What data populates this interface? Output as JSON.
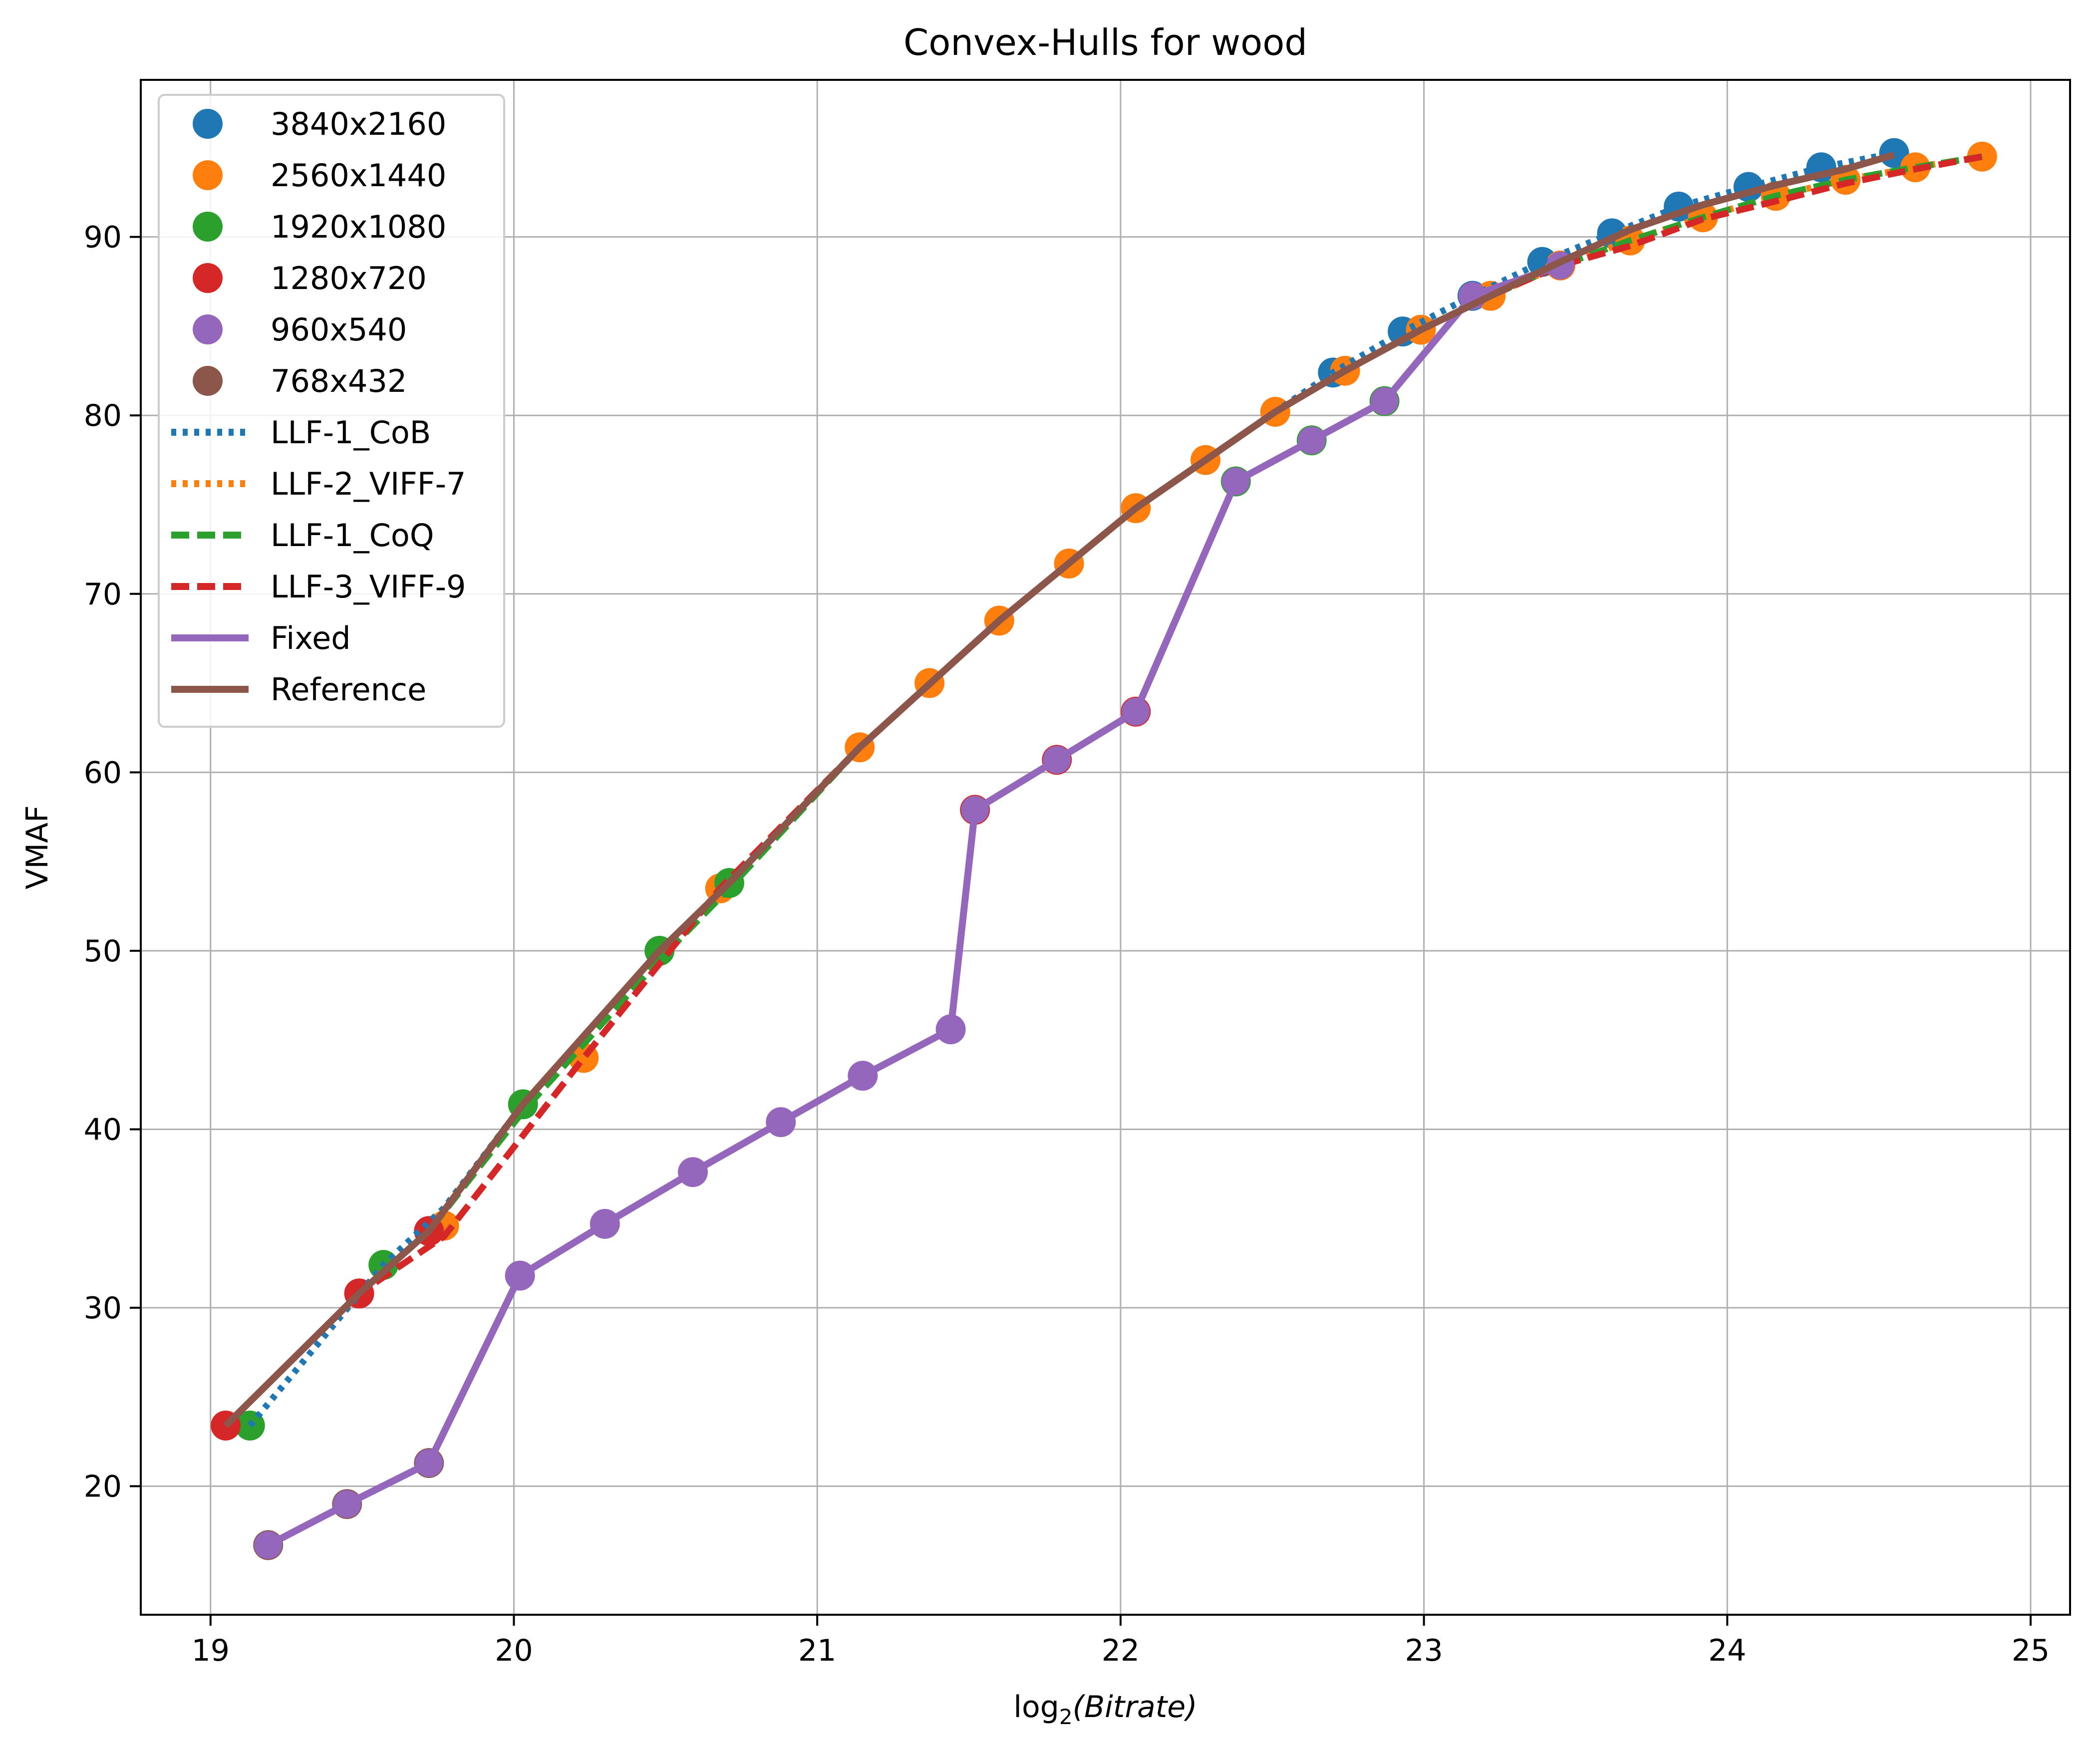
{
  "chart_data": {
    "type": "scatter",
    "title": "Convex-Hulls for wood",
    "xlabel_prefix": "log",
    "xlabel_sub": "2",
    "xlabel_arg": "(Bitrate)",
    "ylabel": "VMAF",
    "xlim": [
      18.77,
      25.13
    ],
    "ylim": [
      12.8,
      98.8
    ],
    "xticks": [
      19,
      20,
      21,
      22,
      23,
      24,
      25
    ],
    "yticks": [
      20,
      30,
      40,
      50,
      60,
      70,
      80,
      90
    ],
    "grid": true,
    "legend_position": "upper left",
    "scatter_series": [
      {
        "name": "3840x2160",
        "color": "#1f77b4",
        "x": [
          22.7,
          22.93,
          23.16,
          23.39,
          23.62,
          23.84,
          24.07,
          24.31,
          24.55
        ],
        "y": [
          82.4,
          84.7,
          86.7,
          88.6,
          90.2,
          91.7,
          92.8,
          93.9,
          94.7
        ]
      },
      {
        "name": "2560x1440",
        "color": "#ff7f0e",
        "x": [
          19.77,
          20.23,
          20.68,
          21.14,
          21.37,
          21.6,
          21.83,
          22.05,
          22.28,
          22.51,
          22.74,
          22.99,
          23.22,
          23.45,
          23.68,
          23.92,
          24.16,
          24.39,
          24.62,
          24.84
        ],
        "y": [
          34.6,
          44.0,
          53.5,
          61.4,
          65.0,
          68.5,
          71.7,
          74.8,
          77.5,
          80.2,
          82.5,
          84.8,
          86.7,
          88.4,
          89.8,
          91.1,
          92.3,
          93.2,
          93.9,
          94.5
        ]
      },
      {
        "name": "1920x1080",
        "color": "#2ca02c",
        "x": [
          19.13,
          19.57,
          20.03,
          20.48,
          20.71,
          22.38,
          22.63,
          22.87
        ],
        "y": [
          23.4,
          32.4,
          41.4,
          50.0,
          53.8,
          76.3,
          78.6,
          80.8
        ]
      },
      {
        "name": "1280x720",
        "color": "#d62728",
        "x": [
          19.05,
          19.49,
          19.72,
          21.52,
          21.79,
          22.05
        ],
        "y": [
          23.4,
          30.8,
          34.3,
          57.9,
          60.7,
          63.4
        ]
      },
      {
        "name": "960x540",
        "color": "#9467bd",
        "x": [
          20.02,
          20.3,
          20.59,
          20.88,
          21.15,
          21.44
        ],
        "y": [
          31.8,
          34.7,
          37.6,
          40.4,
          43.0,
          45.6
        ]
      },
      {
        "name": "768x432",
        "color": "#8c564b",
        "x": [
          19.19,
          19.45,
          19.72
        ],
        "y": [
          16.7,
          19.0,
          21.3
        ]
      }
    ],
    "line_series": [
      {
        "name": "LLF-1_CoB",
        "color": "#1f77b4",
        "style": "dotted",
        "x": [
          19.13,
          19.57,
          19.77,
          20.03,
          20.48,
          20.71,
          21.14,
          21.6,
          22.05,
          22.51,
          22.7,
          22.93,
          23.16,
          23.39,
          23.62,
          23.84,
          24.07,
          24.31,
          24.55
        ],
        "y": [
          23.4,
          32.4,
          35.6,
          41.4,
          50.0,
          53.8,
          61.4,
          68.5,
          74.8,
          80.2,
          82.4,
          84.7,
          86.7,
          88.6,
          90.2,
          91.7,
          92.8,
          93.9,
          94.7
        ]
      },
      {
        "name": "LLF-2_VIFF-7",
        "color": "#ff7f0e",
        "style": "dotted",
        "x": [
          19.05,
          19.49,
          19.72,
          20.03,
          20.48,
          20.71,
          21.14,
          21.6,
          22.05,
          22.51,
          22.74,
          22.99,
          23.22,
          23.45,
          23.68,
          23.92,
          24.16,
          24.39,
          24.62,
          24.84
        ],
        "y": [
          23.4,
          30.8,
          34.3,
          41.4,
          50.0,
          53.8,
          61.4,
          68.5,
          74.8,
          80.2,
          82.5,
          84.8,
          86.7,
          88.4,
          89.8,
          91.1,
          92.3,
          93.2,
          93.9,
          94.5
        ]
      },
      {
        "name": "LLF-1_CoQ",
        "color": "#2ca02c",
        "style": "dashed",
        "x": [
          19.05,
          19.49,
          19.72,
          20.03,
          20.48,
          20.71,
          21.14,
          21.6,
          22.05,
          22.51,
          22.74,
          22.99,
          23.22,
          23.45,
          23.68,
          23.92,
          24.16,
          24.39,
          24.62,
          24.84
        ],
        "y": [
          23.4,
          30.8,
          34.3,
          41.0,
          49.5,
          53.5,
          61.4,
          68.5,
          74.8,
          80.2,
          82.5,
          84.8,
          86.7,
          88.4,
          89.8,
          91.1,
          92.3,
          93.2,
          93.9,
          94.5
        ]
      },
      {
        "name": "LLF-3_VIFF-9",
        "color": "#d62728",
        "style": "dashed",
        "x": [
          19.05,
          19.49,
          19.77,
          20.23,
          20.68,
          21.14,
          21.6,
          22.05,
          22.51,
          22.74,
          22.99,
          23.22,
          23.45,
          23.68,
          23.92,
          24.16,
          24.39,
          24.62,
          24.84
        ],
        "y": [
          23.4,
          30.8,
          34.0,
          44.0,
          53.5,
          61.4,
          68.5,
          74.8,
          80.2,
          82.5,
          84.8,
          86.7,
          88.4,
          89.5,
          91.0,
          92.0,
          93.0,
          93.8,
          94.5
        ]
      },
      {
        "name": "Fixed",
        "color": "#9467bd",
        "style": "solid",
        "markers": true,
        "x": [
          19.19,
          19.45,
          19.72,
          20.02,
          20.3,
          20.59,
          20.88,
          21.15,
          21.44,
          21.52,
          21.79,
          22.05,
          22.38,
          22.63,
          22.87,
          23.16,
          23.45
        ],
        "y": [
          16.7,
          19.0,
          21.3,
          31.8,
          34.7,
          37.6,
          40.4,
          43.0,
          45.6,
          57.9,
          60.7,
          63.4,
          76.3,
          78.6,
          80.8,
          86.7,
          88.4
        ]
      },
      {
        "name": "Reference",
        "color": "#8c564b",
        "style": "solid",
        "x": [
          19.05,
          19.49,
          19.72,
          20.03,
          20.48,
          20.71,
          21.14,
          21.6,
          22.05,
          22.51,
          22.74,
          22.99,
          23.22,
          23.45,
          23.68,
          23.92,
          24.16,
          24.39,
          24.55
        ],
        "y": [
          23.4,
          30.8,
          34.3,
          41.4,
          50.0,
          53.8,
          61.4,
          68.5,
          74.8,
          80.2,
          82.5,
          84.8,
          86.7,
          88.6,
          90.4,
          91.8,
          92.9,
          93.8,
          94.6
        ]
      }
    ]
  }
}
